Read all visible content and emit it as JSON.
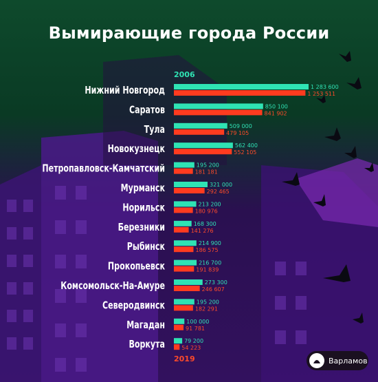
{
  "title": "Вымирающие города России",
  "brand": {
    "name": "Варламов",
    "icon": "varlamov-logo-icon"
  },
  "colors": {
    "series_2006": "#2fe3b4",
    "series_2019": "#ff3b1f",
    "label_2006": "#2fe3b4",
    "label_2019": "#ff4a2a"
  },
  "chart_data": {
    "type": "bar",
    "orientation": "horizontal",
    "title": "Вымирающие города России",
    "categories": [
      "Нижний Новгород",
      "Саратов",
      "Тула",
      "Новокузнецк",
      "Петропавловск-Камчатский",
      "Мурманск",
      "Норильск",
      "Березники",
      "Рыбинск",
      "Прокопьевск",
      "Комсомольск-На-Амуре",
      "Северодвинск",
      "Магадан",
      "Воркута"
    ],
    "series": [
      {
        "name": "2006",
        "values": [
          1283600,
          850100,
          509000,
          562400,
          195200,
          321000,
          213200,
          168300,
          214900,
          216700,
          273300,
          195200,
          100000,
          79200
        ],
        "labels": [
          "1 283 600",
          "850 100",
          "509 000",
          "562 400",
          "195 200",
          "321 000",
          "213 200",
          "168 300",
          "214 900",
          "216 700",
          "273 300",
          "195 200",
          "100 000",
          "79 200"
        ]
      },
      {
        "name": "2019",
        "values": [
          1253511,
          841902,
          479105,
          552105,
          181181,
          292465,
          180976,
          141276,
          186575,
          191839,
          246607,
          182291,
          91781,
          54223
        ],
        "labels": [
          "1 253 511",
          "841 902",
          "479 105",
          "552 105",
          "181 181",
          "292 465",
          "180 976",
          "141 276",
          "186 575",
          "191 839",
          "246 607",
          "182 291",
          "91 781",
          "54 223"
        ]
      }
    ],
    "xlim": [
      0,
      1283600
    ],
    "grid": false,
    "legend": "series names printed at top (2006) and bottom (2019) of bars"
  }
}
